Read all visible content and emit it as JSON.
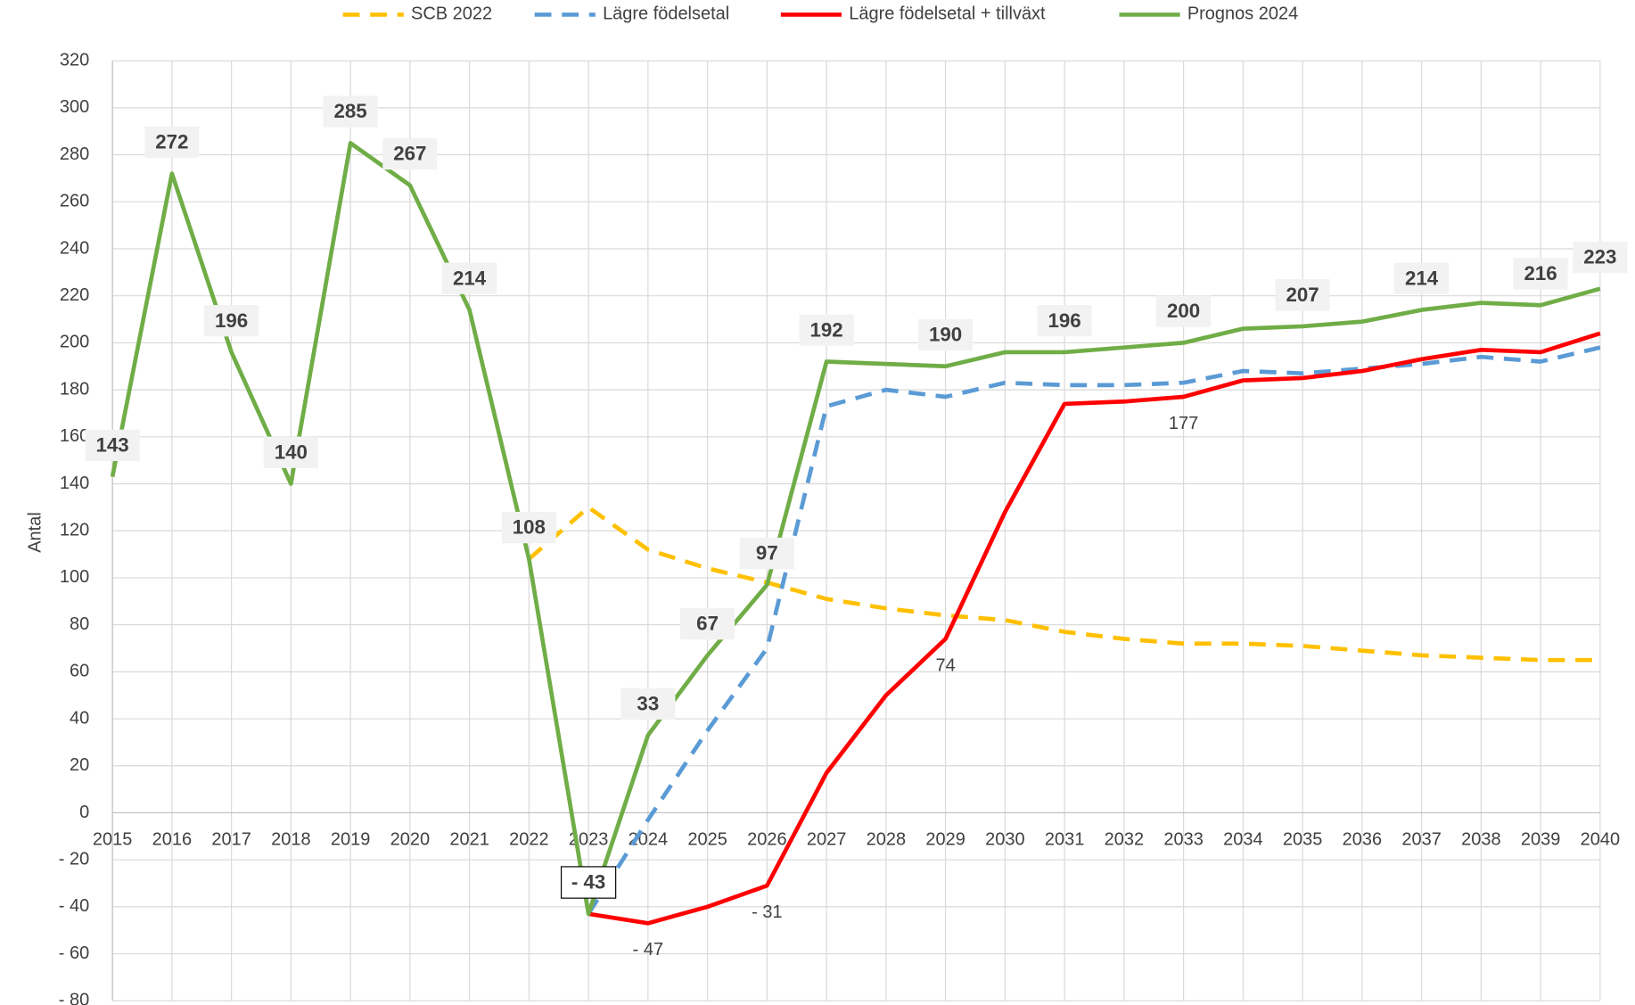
{
  "chart_data": {
    "type": "line",
    "y_label": "Antal",
    "categories": [
      "2015",
      "2016",
      "2017",
      "2018",
      "2019",
      "2020",
      "2021",
      "2022",
      "2023",
      "2024",
      "2025",
      "2026",
      "2027",
      "2028",
      "2029",
      "2030",
      "2031",
      "2032",
      "2033",
      "2034",
      "2035",
      "2036",
      "2037",
      "2038",
      "2039",
      "2040"
    ],
    "ylim": [
      -80,
      320
    ],
    "yticks": [
      {
        "value": -80,
        "label": "- 80"
      },
      {
        "value": -60,
        "label": "- 60"
      },
      {
        "value": -40,
        "label": "- 40"
      },
      {
        "value": -20,
        "label": "- 20"
      },
      0,
      20,
      40,
      60,
      80,
      100,
      120,
      140,
      160,
      180,
      200,
      220,
      240,
      260,
      280,
      300,
      320
    ],
    "negative_tick_color": "#ff0000",
    "grid": true,
    "legend": "top",
    "series": [
      {
        "name": "SCB 2022",
        "color": "#ffc000",
        "dash": true,
        "values": [
          null,
          null,
          null,
          null,
          null,
          null,
          null,
          108,
          130,
          112,
          104,
          98,
          91,
          87,
          84,
          82,
          77,
          74,
          72,
          72,
          71,
          69,
          67,
          66,
          65,
          65
        ]
      },
      {
        "name": "Lägre födelsetal",
        "color": "#5b9bd5",
        "dash": true,
        "values": [
          null,
          null,
          null,
          null,
          null,
          null,
          null,
          null,
          -43,
          -3,
          35,
          70,
          173,
          180,
          177,
          183,
          182,
          182,
          183,
          188,
          187,
          189,
          191,
          194,
          192,
          198
        ]
      },
      {
        "name": "Lägre födelsetal + tillväxt",
        "color": "#ff0000",
        "dash": false,
        "label_color": "#ff0000",
        "values": [
          null,
          null,
          null,
          null,
          null,
          null,
          null,
          null,
          -43,
          -47,
          -40,
          -31,
          17,
          50,
          74,
          128,
          174,
          175,
          177,
          184,
          185,
          188,
          193,
          197,
          196,
          204
        ],
        "value_labels": [
          null,
          null,
          null,
          null,
          null,
          null,
          null,
          null,
          null,
          "- 47",
          null,
          "- 31",
          null,
          null,
          "74",
          null,
          null,
          null,
          "177",
          null,
          null,
          null,
          null,
          null,
          null,
          null
        ]
      },
      {
        "name": "Prognos 2024",
        "color": "#70ad47",
        "dash": false,
        "values": [
          143,
          272,
          196,
          140,
          285,
          267,
          214,
          108,
          -43,
          33,
          67,
          97,
          192,
          191,
          190,
          196,
          196,
          198,
          200,
          206,
          207,
          209,
          214,
          217,
          216,
          223
        ],
        "value_labels": [
          "143",
          "272",
          "196",
          "140",
          "285",
          "267",
          "214",
          "108",
          "- 43",
          "33",
          "67",
          "97",
          "192",
          null,
          "190",
          null,
          "196",
          null,
          "200",
          null,
          "207",
          null,
          "214",
          null,
          "216",
          "223"
        ]
      }
    ]
  }
}
